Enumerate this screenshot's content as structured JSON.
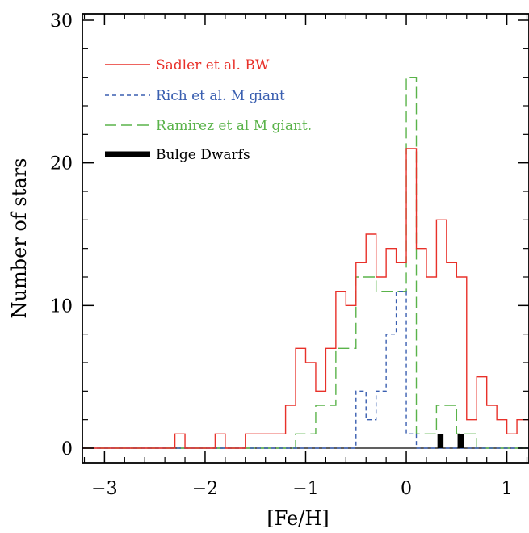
{
  "chart_data": {
    "type": "histogram",
    "xlabel": "[Fe/H]",
    "ylabel": "Number of stars",
    "xlim": [
      -3.22,
      1.22
    ],
    "ylim": [
      0,
      30
    ],
    "x_ticks": [
      -3,
      -2,
      -1,
      0,
      1
    ],
    "x_tick_labels": [
      "−3",
      "−2",
      "−1",
      "0",
      "1"
    ],
    "y_ticks": [
      0,
      10,
      20,
      30
    ],
    "y_tick_labels": [
      "0",
      "10",
      "20",
      "30"
    ],
    "legend_position": "top-left",
    "series": [
      {
        "name": "Sadler et al. BW",
        "color": "#e8312a",
        "style": "solid",
        "edges": [
          -3.22,
          -2.3,
          -2.2,
          -1.9,
          -1.8,
          -1.6,
          -1.2,
          -1.1,
          -1.0,
          -0.9,
          -0.8,
          -0.7,
          -0.6,
          -0.5,
          -0.4,
          -0.3,
          -0.2,
          -0.1,
          0.0,
          0.1,
          0.2,
          0.3,
          0.4,
          0.5,
          0.6,
          0.7,
          0.8,
          0.9,
          1.0,
          1.1,
          1.22
        ],
        "counts": [
          0,
          1,
          0,
          1,
          0,
          1,
          3,
          7,
          6,
          4,
          7,
          11,
          10,
          13,
          15,
          12,
          14,
          13,
          21,
          14,
          12,
          16,
          13,
          12,
          2,
          5,
          3,
          2,
          1,
          2
        ]
      },
      {
        "name": "Rich et al. M giant",
        "color": "#3a5fb0",
        "style": "dashed",
        "edges": [
          -3.22,
          -0.5,
          -0.4,
          -0.3,
          -0.2,
          -0.1,
          0.0,
          0.1,
          0.2,
          1.22
        ],
        "counts": [
          0,
          4,
          2,
          4,
          8,
          11,
          1,
          0,
          0
        ]
      },
      {
        "name": "Ramirez et al M giant.",
        "color": "#5ab34a",
        "style": "longdash",
        "edges": [
          -3.22,
          -1.1,
          -0.9,
          -0.7,
          -0.5,
          -0.3,
          -0.1,
          0.0,
          0.1,
          0.3,
          0.5,
          0.7,
          1.22
        ],
        "counts": [
          0,
          1,
          3,
          7,
          12,
          11,
          11,
          26,
          1,
          3,
          1,
          0
        ]
      },
      {
        "name": "Bulge Dwarfs",
        "color": "#000000",
        "style": "thick",
        "edges": [
          0.31,
          0.37,
          0.51,
          0.57
        ],
        "counts": [
          1,
          0,
          1
        ]
      }
    ]
  }
}
